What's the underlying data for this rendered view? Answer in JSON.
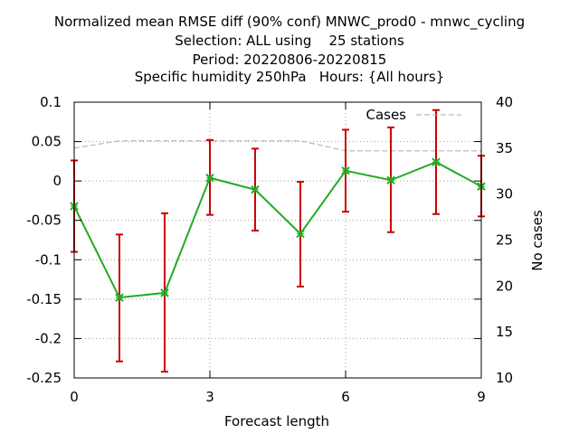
{
  "title_lines": [
    "Normalized mean RMSE diff (90% conf) MNWC_prod0 - mnwc_cycling",
    "Selection: ALL using    25 stations",
    "Period: 20220806-20220815",
    "Specific humidity 250hPa   Hours: {All hours}"
  ],
  "chart_data": {
    "type": "line",
    "xlabel": "Forecast length",
    "ylabel_right": "No cases",
    "xlim": [
      0,
      9
    ],
    "ylim": [
      -0.25,
      0.1
    ],
    "y2lim": [
      10,
      40
    ],
    "x_ticks": [
      0,
      3,
      6,
      9
    ],
    "y_ticks": [
      0.1,
      0.05,
      0,
      -0.05,
      -0.1,
      -0.15,
      -0.2,
      -0.25
    ],
    "y_tick_labels": [
      "0.1",
      "0.05",
      "0",
      "-0.05",
      "-0.1",
      "-0.15",
      "-0.2",
      "-0.25"
    ],
    "y2_ticks": [
      40,
      35,
      30,
      25,
      20,
      15,
      10
    ],
    "grid": true,
    "legend_position": "top-right",
    "series": [
      {
        "x": [
          0,
          1,
          2,
          3,
          4,
          5,
          6,
          7,
          8,
          9
        ],
        "values": [
          -0.032,
          -0.148,
          -0.142,
          0.004,
          -0.011,
          -0.067,
          0.013,
          0.001,
          0.024,
          -0.007
        ],
        "err_low": [
          -0.09,
          -0.229,
          -0.242,
          -0.043,
          -0.063,
          -0.134,
          -0.039,
          -0.065,
          -0.042,
          -0.045
        ],
        "err_high": [
          0.026,
          -0.068,
          -0.041,
          0.052,
          0.041,
          -0.001,
          0.065,
          0.068,
          0.09,
          0.032
        ],
        "color": "#22aa22",
        "error_color": "#cc0000"
      },
      {
        "name": "Cases",
        "axis": "right",
        "style": "dashed",
        "x": [
          0,
          1,
          2,
          3,
          4,
          5,
          6,
          7,
          8,
          9
        ],
        "values": [
          35,
          35.8,
          35.8,
          35.8,
          35.8,
          35.8,
          34.7,
          34.7,
          34.7,
          34.7
        ],
        "color": "#aaaaaa"
      }
    ]
  }
}
